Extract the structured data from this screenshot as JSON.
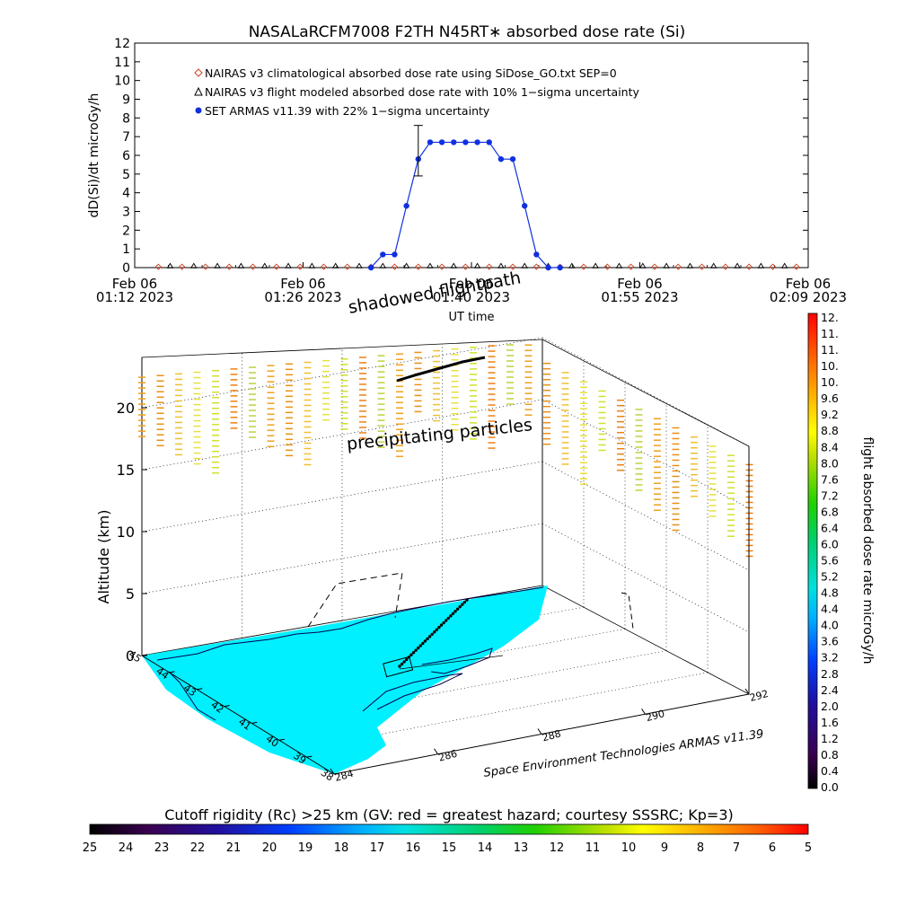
{
  "figure": {
    "title": "NASALaRCFM7008  F2TH N45RT∗ absorbed dose rate (Si)",
    "footer": "Space Environment Technologies ARMAS v11.39",
    "label_shadowed": "shadowed flightpath",
    "label_precip": "precipitating particles"
  },
  "chart_data": [
    {
      "type": "line",
      "title": "NASALaRCFM7008  F2TH N45RT∗ absorbed dose rate (Si)",
      "xlabel": "UT time",
      "ylabel": "dD(Si)/dt microGy/h",
      "ylim": [
        0,
        12
      ],
      "y_ticks": [
        "0",
        "1",
        "2",
        "3",
        "4",
        "5",
        "6",
        "7",
        "8",
        "9",
        "10",
        "11",
        "12"
      ],
      "x_ticks": [
        {
          "l1": "Feb 06",
          "l2": "01:12 2023"
        },
        {
          "l1": "Feb 06",
          "l2": "01:26 2023"
        },
        {
          "l1": "Feb 06",
          "l2": "01:40 2023"
        },
        {
          "l1": "Feb 06",
          "l2": "01:55 2023"
        },
        {
          "l1": "Feb 06",
          "l2": "02:09 2023"
        }
      ],
      "legend_position": "top-left",
      "legend": [
        {
          "marker": "diamond",
          "color": "#d04020",
          "text": "NAIRAS v3 climatological absorbed dose rate using SiDose_GO.txt SEP=0"
        },
        {
          "marker": "triangle",
          "color": "#000000",
          "text": "NAIRAS v3 flight modeled absorbed dose rate with 10% 1−sigma uncertainty"
        },
        {
          "marker": "dot",
          "color": "#1030e0",
          "text": "SET ARMAS v11.39 with 22% 1−sigma uncertainty"
        }
      ],
      "series": [
        {
          "name": "SET ARMAS v11.39",
          "color": "#1030e0",
          "x_minutes": [
            20,
            21,
            22,
            23,
            24,
            25,
            26,
            27,
            28,
            29,
            30,
            31,
            32,
            33,
            34,
            35,
            36
          ],
          "values": [
            0.0,
            0.7,
            0.7,
            3.3,
            5.8,
            6.7,
            6.7,
            6.7,
            6.7,
            6.7,
            6.7,
            5.8,
            5.8,
            3.3,
            0.7,
            0.0,
            0.0
          ],
          "error_bar": {
            "x_minutes": 24,
            "low": 4.9,
            "high": 7.6
          }
        },
        {
          "name": "NAIRAS v3 climatological",
          "color": "#d04020",
          "x_minutes": [
            2,
            4,
            6,
            8,
            10,
            12,
            14,
            16,
            18,
            20,
            22,
            24,
            26,
            28,
            30,
            32,
            34,
            36,
            38,
            40,
            42,
            44,
            46,
            48,
            50,
            52,
            54,
            56
          ],
          "values": [
            0.04,
            0.04,
            0.04,
            0.04,
            0.04,
            0.04,
            0.04,
            0.04,
            0.04,
            0.04,
            0.04,
            0.04,
            0.04,
            0.04,
            0.04,
            0.04,
            0.04,
            0.04,
            0.04,
            0.04,
            0.04,
            0.04,
            0.04,
            0.04,
            0.04,
            0.04,
            0.04,
            0.04
          ]
        },
        {
          "name": "NAIRAS v3 flight modeled",
          "color": "#000000",
          "x_minutes": [
            3,
            5,
            7,
            9,
            11,
            13,
            15,
            17,
            19,
            21,
            23,
            25,
            27,
            29,
            31,
            33,
            35,
            37,
            39,
            41,
            43,
            45,
            47,
            49,
            51,
            53,
            55
          ],
          "values": [
            0.08,
            0.08,
            0.08,
            0.08,
            0.08,
            0.08,
            0.08,
            0.08,
            0.08,
            0.08,
            0.08,
            0.08,
            0.08,
            0.08,
            0.08,
            0.08,
            0.08,
            0.08,
            0.08,
            0.08,
            0.08,
            0.08,
            0.08,
            0.08,
            0.08,
            0.08,
            0.08
          ]
        }
      ]
    },
    {
      "type": "scatter",
      "title": "",
      "ylabel": "Altitude (km)",
      "z_ticks": [
        "0",
        "5",
        "10",
        "15",
        "20"
      ],
      "lat_ticks": [
        "45",
        "44",
        "43",
        "42",
        "41",
        "40",
        "39",
        "38"
      ],
      "lon_ticks": [
        "284",
        "286",
        "288",
        "290",
        "292"
      ]
    },
    {
      "type": "heatmap",
      "orientation": "vertical",
      "label": "flight absorbed dose rate microGy/h",
      "ticks": [
        "12.",
        "11.",
        "11.",
        "10.",
        "10.",
        "9.6",
        "9.2",
        "8.8",
        "8.4",
        "8.0",
        "7.6",
        "7.2",
        "6.8",
        "6.4",
        "6.0",
        "5.6",
        "5.2",
        "4.8",
        "4.4",
        "4.0",
        "3.6",
        "3.2",
        "2.8",
        "2.4",
        "2.0",
        "1.6",
        "1.2",
        "0.8",
        "0.4",
        "0.0"
      ]
    },
    {
      "type": "heatmap",
      "orientation": "horizontal",
      "label": "Cutoff rigidity (Rc) >25 km (GV: red = greatest hazard; courtesy SSSRC; Kp=3)",
      "ticks": [
        "25",
        "24",
        "23",
        "22",
        "21",
        "20",
        "19",
        "18",
        "17",
        "16",
        "15",
        "14",
        "13",
        "12",
        "11",
        "10",
        "9",
        "8",
        "7",
        "6",
        "5"
      ]
    }
  ]
}
